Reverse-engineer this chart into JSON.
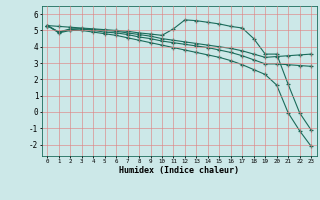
{
  "xlabel": "Humidex (Indice chaleur)",
  "xlim": [
    -0.5,
    23.5
  ],
  "ylim": [
    -2.7,
    6.5
  ],
  "yticks": [
    -2,
    -1,
    0,
    1,
    2,
    3,
    4,
    5,
    6
  ],
  "xticks": [
    0,
    1,
    2,
    3,
    4,
    5,
    6,
    7,
    8,
    9,
    10,
    11,
    12,
    13,
    14,
    15,
    16,
    17,
    18,
    19,
    20,
    21,
    22,
    23
  ],
  "background_color": "#cce8e8",
  "grid_color": "#e08080",
  "line_color": "#1a6b5a",
  "line1_x": [
    0,
    1,
    2,
    3,
    4,
    5,
    6,
    7,
    8,
    9,
    10,
    11,
    12,
    13,
    14,
    15,
    16,
    17,
    18,
    19,
    20,
    21,
    22,
    23
  ],
  "line1_y": [
    5.3,
    5.25,
    5.2,
    5.15,
    5.1,
    5.05,
    5.0,
    4.95,
    4.85,
    4.78,
    4.7,
    5.1,
    5.65,
    5.6,
    5.5,
    5.4,
    5.25,
    5.15,
    4.5,
    3.55,
    3.55,
    1.7,
    -0.05,
    -1.1
  ],
  "line2_x": [
    0,
    1,
    2,
    3,
    4,
    5,
    6,
    7,
    8,
    9,
    10,
    11,
    12,
    13,
    14,
    15,
    16,
    17,
    18,
    19,
    20,
    21,
    22,
    23
  ],
  "line2_y": [
    5.3,
    4.9,
    5.1,
    5.1,
    5.05,
    5.0,
    4.95,
    4.85,
    4.75,
    4.65,
    4.5,
    4.4,
    4.3,
    4.2,
    4.1,
    4.0,
    3.9,
    3.75,
    3.55,
    3.35,
    3.4,
    3.45,
    3.5,
    3.55
  ],
  "line3_x": [
    0,
    1,
    2,
    3,
    4,
    5,
    6,
    7,
    8,
    9,
    10,
    11,
    12,
    13,
    14,
    15,
    16,
    17,
    18,
    19,
    20,
    21,
    22,
    23
  ],
  "line3_y": [
    5.3,
    4.9,
    5.05,
    5.1,
    5.0,
    4.9,
    4.85,
    4.75,
    4.6,
    4.5,
    4.35,
    4.25,
    4.15,
    4.05,
    3.95,
    3.8,
    3.65,
    3.45,
    3.2,
    2.95,
    2.95,
    2.9,
    2.85,
    2.8
  ],
  "line4_x": [
    0,
    1,
    2,
    3,
    4,
    5,
    6,
    7,
    8,
    9,
    10,
    11,
    12,
    13,
    14,
    15,
    16,
    17,
    18,
    19,
    20,
    21,
    22,
    23
  ],
  "line4_y": [
    5.3,
    4.85,
    5.0,
    5.0,
    4.9,
    4.8,
    4.7,
    4.55,
    4.4,
    4.25,
    4.1,
    3.95,
    3.8,
    3.65,
    3.5,
    3.35,
    3.15,
    2.9,
    2.6,
    2.3,
    1.65,
    -0.05,
    -1.15,
    -2.1
  ],
  "marker": "+",
  "markersize": 3,
  "linewidth": 0.8
}
